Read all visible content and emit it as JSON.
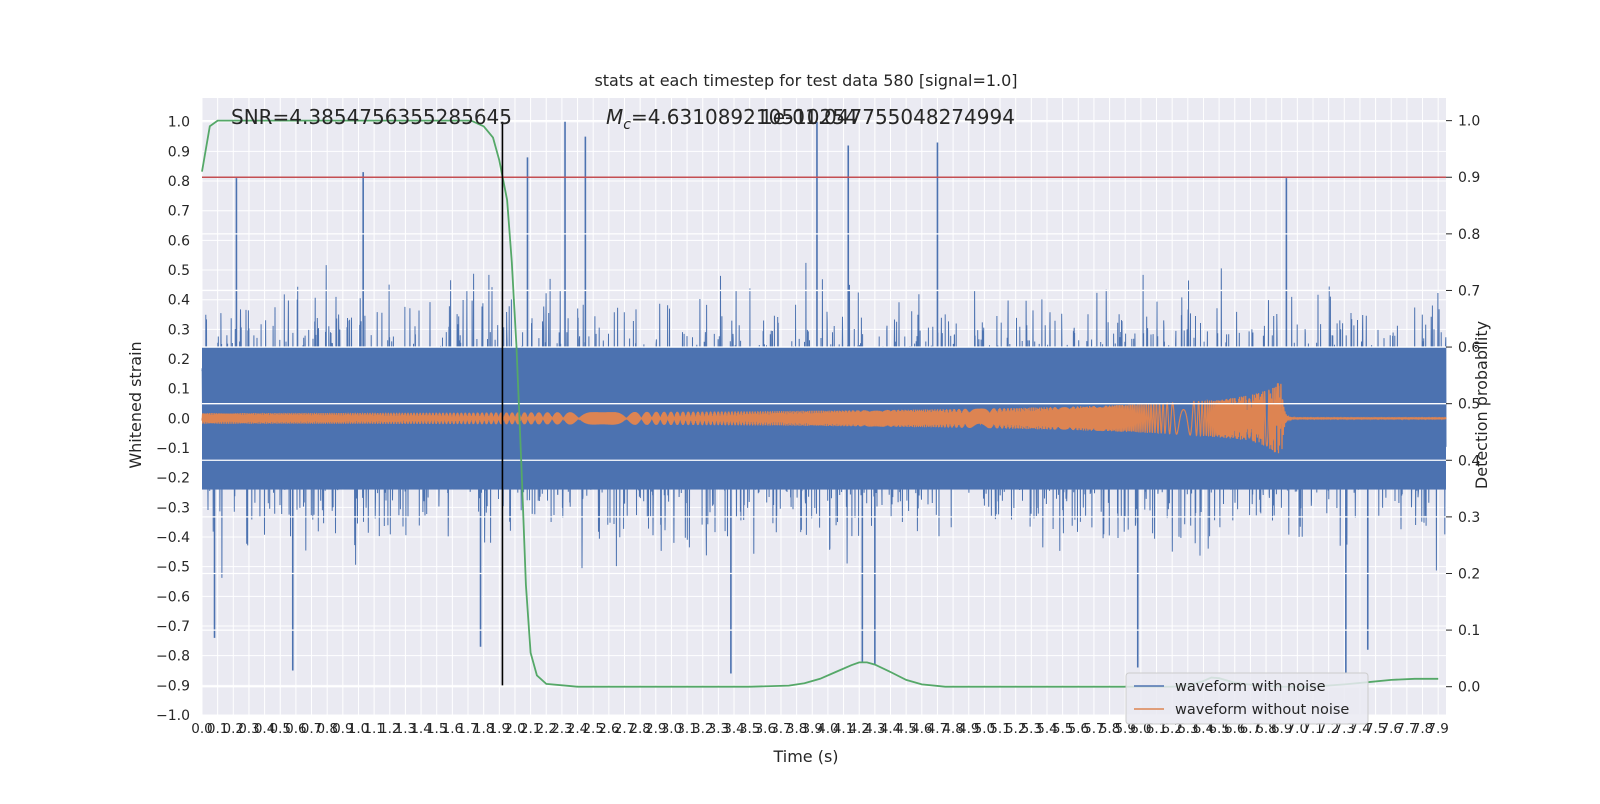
{
  "chart_data": {
    "type": "line",
    "title": "stats at each timestep for test data 580 [signal=1.0]",
    "xlabel": "Time (s)",
    "ylabel": "Whitened strain",
    "ylabel_right": "Detection probability",
    "xlim": [
      0.0,
      7.95
    ],
    "ylim": [
      -1.0,
      1.08
    ],
    "ylim_right": [
      -0.05,
      1.04
    ],
    "x_ticks": [
      "0.0",
      "0.1",
      "0.2",
      "0.3",
      "0.4",
      "0.5",
      "0.6",
      "0.7",
      "0.8",
      "0.9",
      "1.0",
      "1.1",
      "1.2",
      "1.3",
      "1.4",
      "1.5",
      "1.6",
      "1.7",
      "1.8",
      "1.9",
      "2.0",
      "2.1",
      "2.2",
      "2.3",
      "2.4",
      "2.5",
      "2.6",
      "2.7",
      "2.8",
      "2.9",
      "3.0",
      "3.1",
      "3.2",
      "3.3",
      "3.4",
      "3.5",
      "3.6",
      "3.7",
      "3.8",
      "3.9",
      "4.0",
      "4.1",
      "4.2",
      "4.3",
      "4.4",
      "4.5",
      "4.6",
      "4.7",
      "4.8",
      "4.9",
      "5.0",
      "5.1",
      "5.2",
      "5.3",
      "5.4",
      "5.5",
      "5.6",
      "5.7",
      "5.8",
      "5.9",
      "6.0",
      "6.1",
      "6.2",
      "6.3",
      "6.4",
      "6.5",
      "6.6",
      "6.7",
      "6.8",
      "6.9",
      "7.0",
      "7.1",
      "7.2",
      "7.3",
      "7.4",
      "7.5",
      "7.6",
      "7.7",
      "7.8",
      "7.9"
    ],
    "y_ticks_left": [
      "-1.0",
      "-0.9",
      "-0.8",
      "-0.7",
      "-0.6",
      "-0.5",
      "-0.4",
      "-0.3",
      "-0.2",
      "-0.1",
      "0.0",
      "0.1",
      "0.2",
      "0.3",
      "0.4",
      "0.5",
      "0.6",
      "0.7",
      "0.8",
      "0.9",
      "1.0"
    ],
    "y_ticks_right": [
      "0.0",
      "0.1",
      "0.2",
      "0.3",
      "0.4",
      "0.5",
      "0.6",
      "0.7",
      "0.8",
      "0.9",
      "1.0"
    ],
    "annotations": {
      "snr": "SNR=4.3854756355285645",
      "mc_symbol": "M",
      "mc_sub": "c",
      "mc_value": "=4.631089210510254",
      "overlap_text": "1e-01.047755048274994"
    },
    "vertical_marker_x": 1.92,
    "threshold_right": 0.9,
    "series": [
      {
        "name": "waveform with noise",
        "color": "#4c72b0",
        "kind": "noise",
        "envelope_range": [
          -1.0,
          1.0
        ],
        "peaks": [
          {
            "x": 0.22,
            "y": 0.81
          },
          {
            "x": 1.03,
            "y": 0.83
          },
          {
            "x": 2.08,
            "y": 0.88
          },
          {
            "x": 2.32,
            "y": 1.0
          },
          {
            "x": 2.45,
            "y": 0.95
          },
          {
            "x": 3.93,
            "y": 1.0
          },
          {
            "x": 4.13,
            "y": 0.92
          },
          {
            "x": 4.7,
            "y": 0.93
          },
          {
            "x": 6.93,
            "y": 0.81
          }
        ],
        "troughs": [
          {
            "x": 0.08,
            "y": -0.74
          },
          {
            "x": 0.58,
            "y": -0.85
          },
          {
            "x": 1.78,
            "y": -0.77
          },
          {
            "x": 3.38,
            "y": -0.86
          },
          {
            "x": 4.22,
            "y": -0.82
          },
          {
            "x": 4.3,
            "y": -0.83
          },
          {
            "x": 5.98,
            "y": -0.84
          },
          {
            "x": 7.31,
            "y": -0.86
          },
          {
            "x": 7.45,
            "y": -0.78
          }
        ]
      },
      {
        "name": "waveform without noise",
        "color": "#dd8452",
        "kind": "chirp",
        "start_amplitude": 0.018,
        "peak_amplitude": 0.12,
        "merger_x": 6.9,
        "end_x": 7.95
      },
      {
        "name": "",
        "color": "#55a868",
        "axis": "right",
        "points": [
          [
            0.0,
            0.91
          ],
          [
            0.05,
            0.99
          ],
          [
            0.1,
            1.0
          ],
          [
            0.2,
            1.0
          ],
          [
            0.5,
            1.0
          ],
          [
            1.0,
            1.0
          ],
          [
            1.5,
            1.0
          ],
          [
            1.72,
            1.0
          ],
          [
            1.8,
            0.99
          ],
          [
            1.86,
            0.97
          ],
          [
            1.9,
            0.93
          ],
          [
            1.95,
            0.86
          ],
          [
            1.98,
            0.75
          ],
          [
            2.01,
            0.6
          ],
          [
            2.04,
            0.4
          ],
          [
            2.07,
            0.18
          ],
          [
            2.1,
            0.06
          ],
          [
            2.14,
            0.02
          ],
          [
            2.2,
            0.005
          ],
          [
            2.4,
            0.0
          ],
          [
            3.0,
            0.0
          ],
          [
            3.5,
            0.0
          ],
          [
            3.75,
            0.002
          ],
          [
            3.85,
            0.006
          ],
          [
            3.95,
            0.014
          ],
          [
            4.05,
            0.026
          ],
          [
            4.15,
            0.038
          ],
          [
            4.2,
            0.043
          ],
          [
            4.25,
            0.043
          ],
          [
            4.3,
            0.039
          ],
          [
            4.4,
            0.026
          ],
          [
            4.5,
            0.012
          ],
          [
            4.6,
            0.004
          ],
          [
            4.75,
            0.0
          ],
          [
            5.5,
            0.0
          ],
          [
            6.2,
            0.0
          ],
          [
            6.3,
            0.002
          ],
          [
            6.4,
            0.01
          ],
          [
            6.45,
            0.016
          ],
          [
            6.5,
            0.015
          ],
          [
            6.6,
            0.007
          ],
          [
            6.75,
            0.002
          ],
          [
            6.9,
            0.0
          ],
          [
            7.1,
            0.0
          ],
          [
            7.3,
            0.004
          ],
          [
            7.45,
            0.008
          ],
          [
            7.6,
            0.012
          ],
          [
            7.75,
            0.014
          ],
          [
            7.9,
            0.014
          ]
        ]
      }
    ],
    "legend": {
      "placement": "bottom-right",
      "entries": [
        "waveform with noise",
        "waveform without noise"
      ]
    },
    "grid": true,
    "colors": {
      "background": "#eaeaf2",
      "grid": "#ffffff",
      "threshold": "#c44e52",
      "marker": "#000000"
    }
  }
}
